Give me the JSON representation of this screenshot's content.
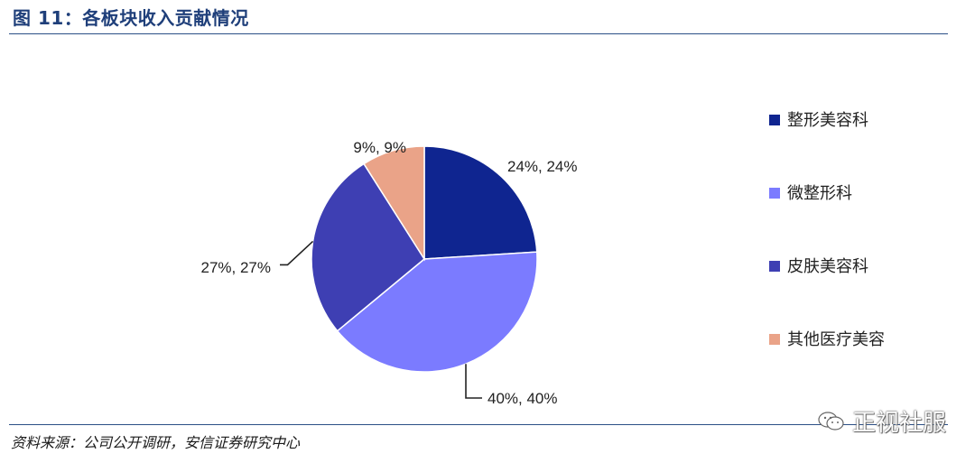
{
  "title": "图 11：各板块收入贡献情况",
  "source": "资料来源：公司公开调研，安信证券研究中心",
  "watermark": {
    "text": "正视社服",
    "icon": "wechat-icon"
  },
  "chart_data": {
    "type": "pie",
    "title": "",
    "categories": [
      "整形美容科",
      "微整形科",
      "皮肤美容科",
      "其他医疗美容"
    ],
    "values": [
      24,
      40,
      27,
      9
    ],
    "labels": [
      "24%, 24%",
      "40%, 40%",
      "27%, 27%",
      "9%, 9%"
    ],
    "colors": [
      "#0f2590",
      "#7b7bff",
      "#3e3fb3",
      "#eaa388"
    ],
    "legend": "right",
    "start_angle_deg": 0,
    "direction": "clockwise"
  }
}
